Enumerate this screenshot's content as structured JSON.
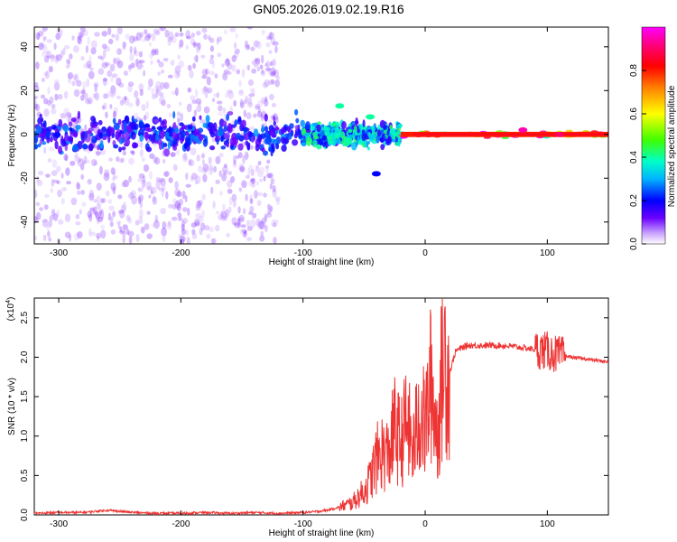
{
  "title": "GN05.2026.019.02.19.R16",
  "chart_data": [
    {
      "type": "heatmap",
      "panel": "spectrogram",
      "xlabel": "Height of straight line (km)",
      "ylabel": "Frequency (Hz)",
      "xlim": [
        -320,
        150
      ],
      "ylim": [
        -50,
        49
      ],
      "xticks": [
        "-300",
        "-200",
        "-100",
        "0",
        "100"
      ],
      "xtick_values": [
        -300,
        -200,
        -100,
        0,
        100
      ],
      "yticks": [
        "-40",
        "-20",
        "0",
        "20",
        "40"
      ],
      "ytick_values": [
        -40,
        -20,
        0,
        20,
        40
      ],
      "colorbar": {
        "label": "Normalized spectral amplitude",
        "range": [
          0,
          1
        ],
        "ticks": [
          "0.0",
          "0.2",
          "0.4",
          "0.6",
          "0.8"
        ],
        "tick_values": [
          0.0,
          0.2,
          0.4,
          0.6,
          0.8
        ],
        "colors": [
          "#ffffff",
          "#6a00ff",
          "#0000ff",
          "#00c8ff",
          "#00ff80",
          "#80ff00",
          "#ffff00",
          "#ff8000",
          "#ff0000",
          "#ff0080",
          "#ff00ff"
        ]
      },
      "bands": [
        {
          "x_start": -320,
          "x_end": -120,
          "freq_spread": 49,
          "amplitude": 0.08,
          "description_value": "sparse diffuse speckle"
        },
        {
          "x_start": -320,
          "x_end": -100,
          "freq_spread": 12,
          "amplitude": 0.22
        },
        {
          "x_start": -100,
          "x_end": -20,
          "freq_spread": 8,
          "amplitude": 0.35
        },
        {
          "x_start": -20,
          "x_end": 150,
          "freq_spread": 2,
          "amplitude": 0.85
        }
      ],
      "features": [
        {
          "x": -70,
          "freq": 13,
          "amplitude": 0.4
        },
        {
          "x": -45,
          "freq": 8,
          "amplitude": 0.4
        },
        {
          "x": -40,
          "freq": -18,
          "amplitude": 0.2
        },
        {
          "x": 80,
          "freq": 2,
          "amplitude": 0.95
        },
        {
          "x": 110,
          "freq": 0,
          "amplitude": 0.9
        }
      ]
    },
    {
      "type": "line",
      "panel": "snr",
      "xlabel": "Height of straight line (km)",
      "ylabel": "SNR (10 * v/v)",
      "multiplier_label": "(x10",
      "multiplier_exp": "4",
      "multiplier_close": ")",
      "xlim": [
        -320,
        150
      ],
      "ylim": [
        0,
        2.75
      ],
      "xticks": [
        "-300",
        "-200",
        "-100",
        "0",
        "100"
      ],
      "xtick_values": [
        -300,
        -200,
        -100,
        0,
        100
      ],
      "yticks": [
        "0.0",
        "0.5",
        "1.0",
        "1.5",
        "2.0",
        "2.5"
      ],
      "ytick_values": [
        0.0,
        0.5,
        1.0,
        1.5,
        2.0,
        2.5
      ],
      "color": "#ee3333",
      "series": [
        {
          "name": "SNR",
          "x": [
            -320,
            -300,
            -280,
            -260,
            -240,
            -220,
            -200,
            -180,
            -160,
            -140,
            -120,
            -100,
            -90,
            -80,
            -70,
            -60,
            -50,
            -45,
            -40,
            -35,
            -30,
            -25,
            -20,
            -15,
            -10,
            -5,
            0,
            5,
            10,
            15,
            20,
            25,
            30,
            35,
            40,
            50,
            60,
            70,
            80,
            90,
            100,
            105,
            110,
            115,
            120,
            130,
            140,
            150
          ],
          "y": [
            0.02,
            0.03,
            0.03,
            0.06,
            0.03,
            0.02,
            0.02,
            0.03,
            0.02,
            0.03,
            0.02,
            0.03,
            0.04,
            0.06,
            0.1,
            0.15,
            0.3,
            0.45,
            0.7,
            0.8,
            0.75,
            1.1,
            0.9,
            1.2,
            0.8,
            1.3,
            1.1,
            1.7,
            1.0,
            2.05,
            1.8,
            2.08,
            2.12,
            2.15,
            2.15,
            2.15,
            2.15,
            2.14,
            2.12,
            2.1,
            2.08,
            2.05,
            2.02,
            2.02,
            2.0,
            1.98,
            1.96,
            1.94
          ]
        }
      ]
    }
  ]
}
